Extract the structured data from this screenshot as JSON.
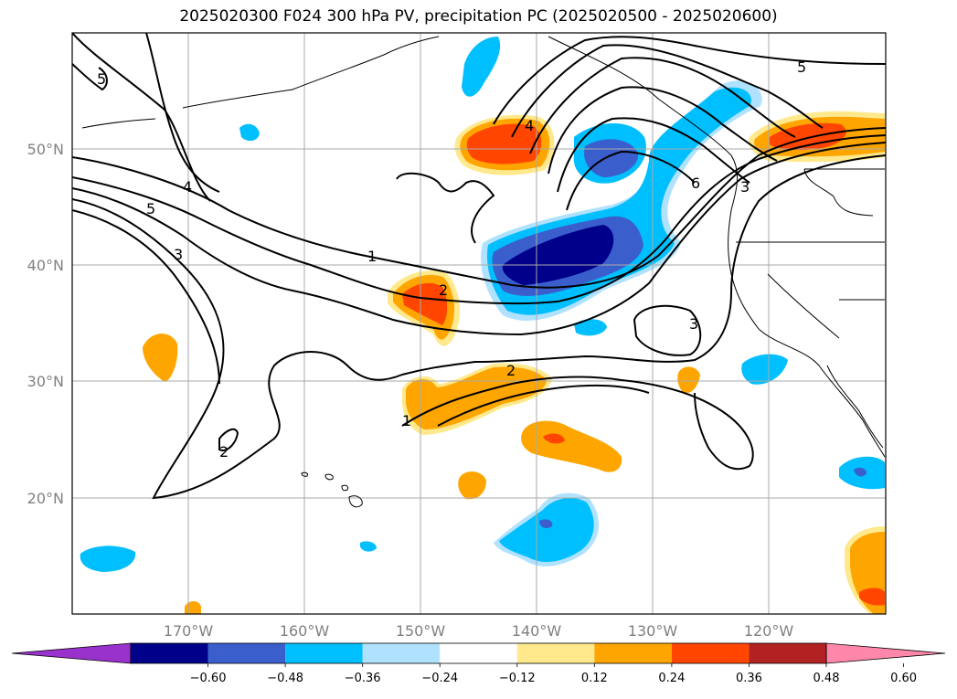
{
  "title": "2025020300 F024 300 hPa PV, precipitation PC (2025020500 - 2025020600)",
  "map": {
    "lon_labels": [
      "170°W",
      "160°W",
      "150°W",
      "140°W",
      "130°W",
      "120°W"
    ],
    "lat_labels": [
      "50°N",
      "40°N",
      "30°N",
      "20°N"
    ],
    "gridlines": true,
    "projection": "Plate Carrée",
    "region": "North Pacific / western North America"
  },
  "pv_contour_labels": [
    "5",
    "4",
    "5",
    "3",
    "1",
    "2",
    "2",
    "1",
    "3",
    "6",
    "3",
    "5",
    "2",
    "4"
  ],
  "colorbar": {
    "ticks": [
      "−0.60",
      "−0.48",
      "−0.36",
      "−0.24",
      "−0.12",
      "0.12",
      "0.24",
      "0.36",
      "0.48",
      "0.60"
    ],
    "colors": [
      "#9932cc",
      "#00008b",
      "#3a5fcd",
      "#00bfff",
      "#b0e2ff",
      "#ffffff",
      "#ffe98c",
      "#ffa500",
      "#ff4500",
      "#b22222",
      "#ff88aa"
    ],
    "extend": "both"
  }
}
